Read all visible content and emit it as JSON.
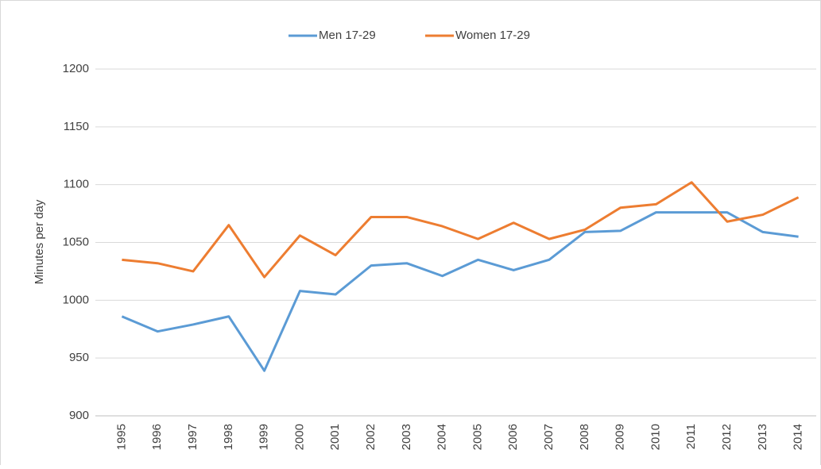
{
  "chart_data": {
    "type": "line",
    "y_label": "Minutes per day",
    "categories": [
      "1995",
      "1996",
      "1997",
      "1998",
      "1999",
      "2000",
      "2001",
      "2002",
      "2003",
      "2004",
      "2005",
      "2006",
      "2007",
      "2008",
      "2009",
      "2010",
      "2011",
      "2012",
      "2013",
      "2014"
    ],
    "series": [
      {
        "name": "Men 17-29",
        "color": "#5b9bd5",
        "values": [
          986,
          973,
          979,
          986,
          939,
          1008,
          1005,
          1030,
          1032,
          1021,
          1035,
          1026,
          1035,
          1059,
          1060,
          1076,
          1076,
          1076,
          1059,
          1055
        ]
      },
      {
        "name": "Women 17-29",
        "color": "#ed7d31",
        "values": [
          1035,
          1032,
          1025,
          1065,
          1020,
          1056,
          1039,
          1072,
          1072,
          1064,
          1053,
          1067,
          1053,
          1061,
          1080,
          1083,
          1102,
          1068,
          1074,
          1089
        ]
      }
    ],
    "ylim": [
      900,
      1200
    ],
    "yticks": [
      900,
      950,
      1000,
      1050,
      1100,
      1150,
      1200
    ],
    "grid": true,
    "legend": "top"
  }
}
